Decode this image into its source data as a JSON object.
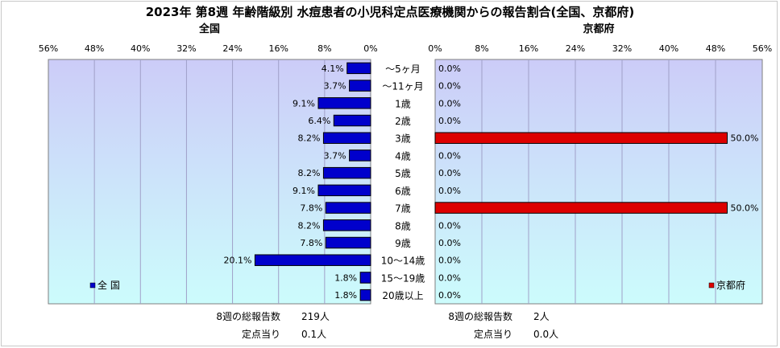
{
  "title": "2023年 第8週 年齢階級別 水痘患者の小児科定点医療機関からの報告割合(全国、京都府)",
  "colors": {
    "plot_top": "#ccccf8",
    "plot_bottom": "#ccfcfc",
    "national_bar": "#0000cc",
    "kyoto_bar": "#dd0000"
  },
  "chart_data": [
    {
      "type": "bar",
      "orientation": "horizontal",
      "direction": "right-to-left",
      "panel_title": "全国",
      "legend": "全 国",
      "legend_position": "bottom-left",
      "categories": [
        "～5ヶ月",
        "～11ヶ月",
        "1歳",
        "2歳",
        "3歳",
        "4歳",
        "5歳",
        "6歳",
        "7歳",
        "8歳",
        "9歳",
        "10～14歳",
        "15～19歳",
        "20歳以上"
      ],
      "values": [
        4.1,
        3.7,
        9.1,
        6.4,
        8.2,
        3.7,
        8.2,
        9.1,
        7.8,
        8.2,
        7.8,
        20.1,
        1.8,
        1.8
      ],
      "value_labels": [
        "4.1%",
        "3.7%",
        "9.1%",
        "6.4%",
        "8.2%",
        "3.7%",
        "8.2%",
        "9.1%",
        "7.8%",
        "8.2%",
        "7.8%",
        "20.1%",
        "1.8%",
        "1.8%"
      ],
      "xlim": [
        0,
        56
      ],
      "ticks": [
        56,
        48,
        40,
        32,
        24,
        16,
        8,
        0
      ],
      "tick_labels": [
        "56%",
        "48%",
        "40%",
        "32%",
        "24%",
        "16%",
        "8%",
        "0%"
      ],
      "grid": true,
      "footer": [
        {
          "label": "8週の総報告数",
          "value": "219人"
        },
        {
          "label": "定点当り",
          "value": "0.1人"
        }
      ]
    },
    {
      "type": "bar",
      "orientation": "horizontal",
      "direction": "left-to-right",
      "panel_title": "京都府",
      "legend": "京都府",
      "legend_position": "bottom-right",
      "categories": [
        "～5ヶ月",
        "～11ヶ月",
        "1歳",
        "2歳",
        "3歳",
        "4歳",
        "5歳",
        "6歳",
        "7歳",
        "8歳",
        "9歳",
        "10～14歳",
        "15～19歳",
        "20歳以上"
      ],
      "values": [
        0.0,
        0.0,
        0.0,
        0.0,
        50.0,
        0.0,
        0.0,
        0.0,
        50.0,
        0.0,
        0.0,
        0.0,
        0.0,
        0.0
      ],
      "value_labels": [
        "0.0%",
        "0.0%",
        "0.0%",
        "0.0%",
        "50.0%",
        "0.0%",
        "0.0%",
        "0.0%",
        "50.0%",
        "0.0%",
        "0.0%",
        "0.0%",
        "0.0%",
        "0.0%"
      ],
      "xlim": [
        0,
        56
      ],
      "ticks": [
        0,
        8,
        16,
        24,
        32,
        40,
        48,
        56
      ],
      "tick_labels": [
        "0%",
        "8%",
        "16%",
        "24%",
        "32%",
        "40%",
        "48%",
        "56%"
      ],
      "grid": true,
      "footer": [
        {
          "label": "8週の総報告数",
          "value": "2人"
        },
        {
          "label": "定点当り",
          "value": "0.0人"
        }
      ]
    }
  ]
}
